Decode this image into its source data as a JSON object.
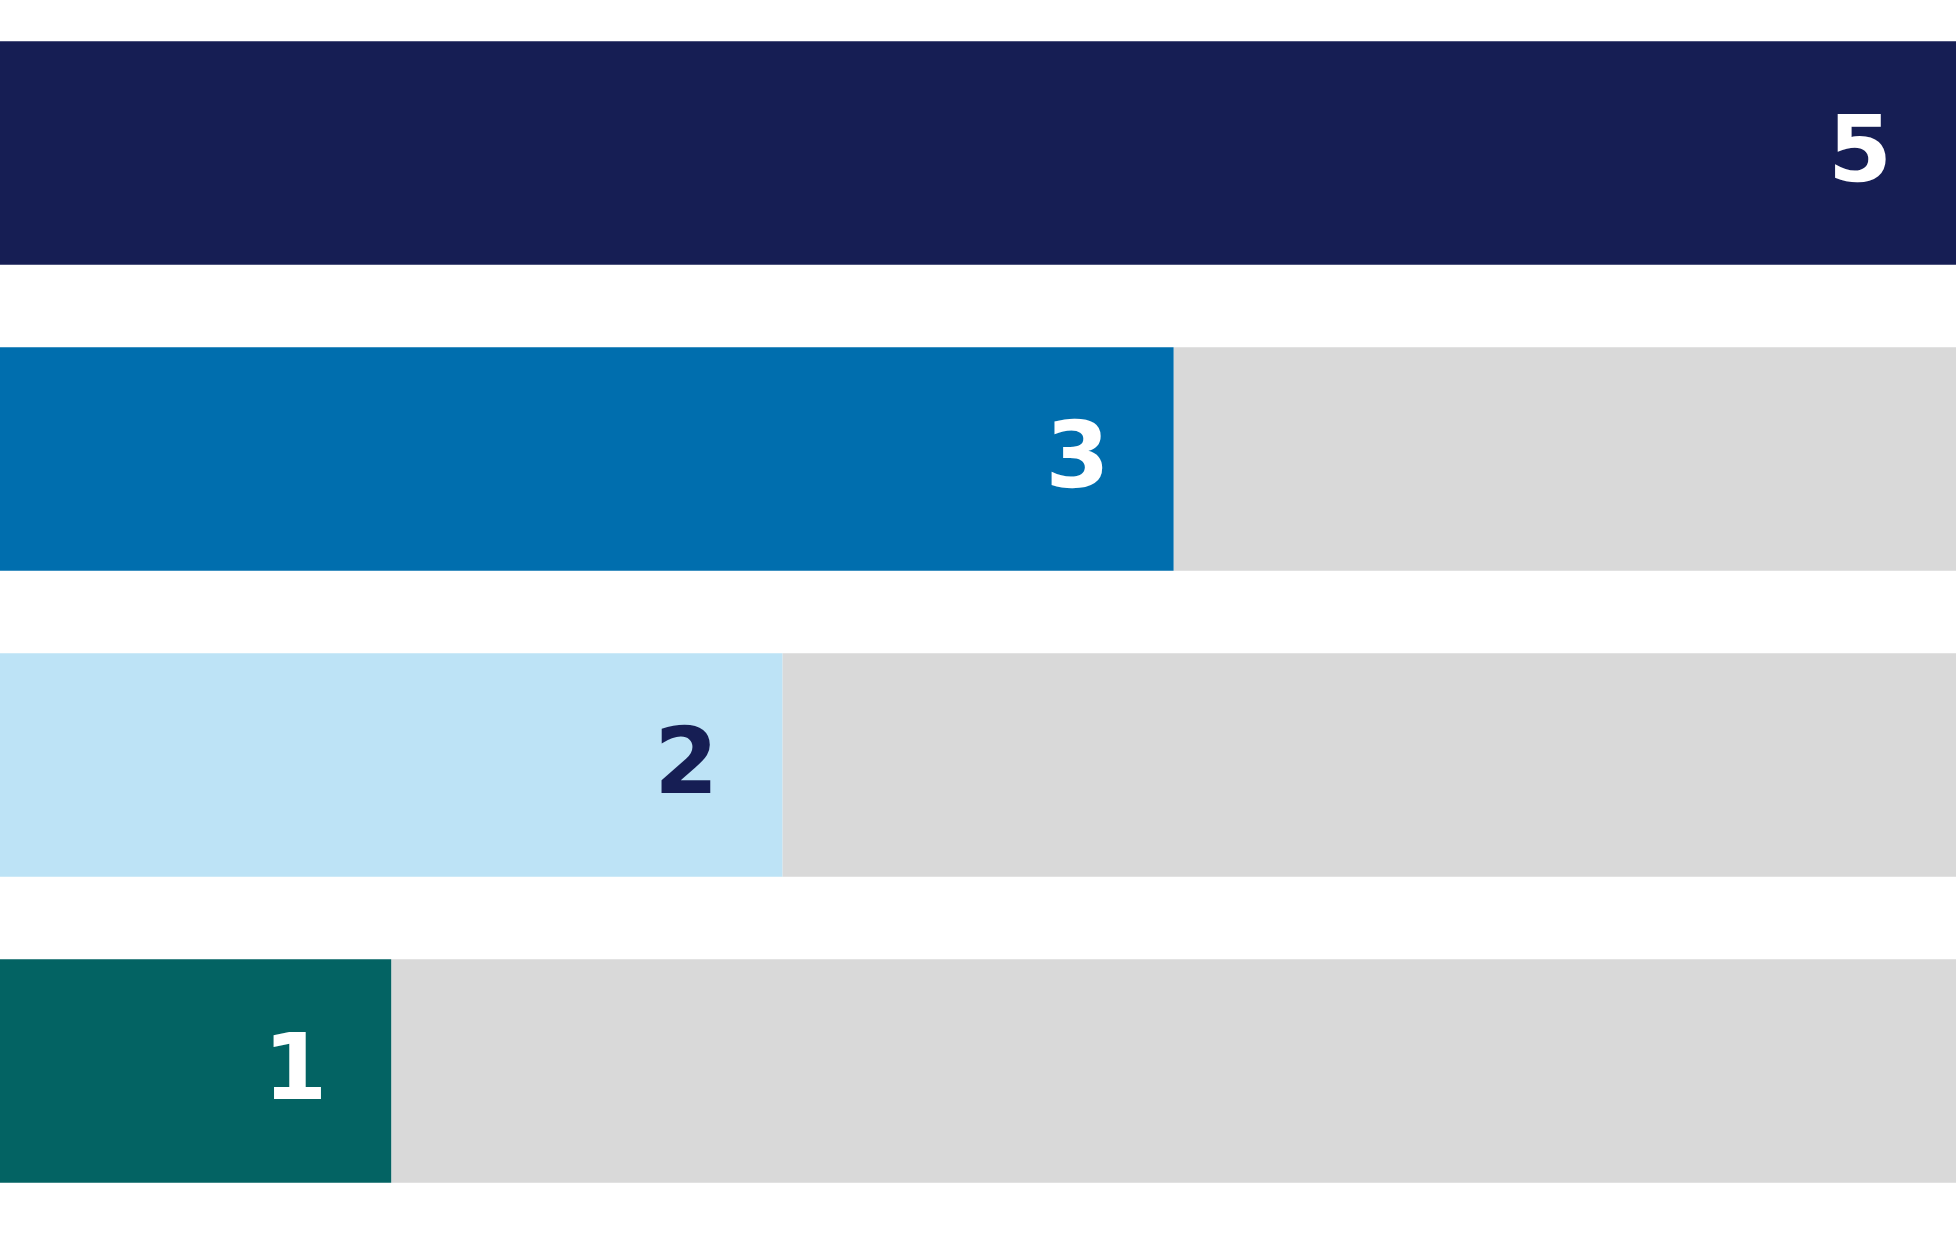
{
  "chart_data": {
    "type": "bar",
    "orientation": "horizontal",
    "stacked": true,
    "categories": [
      null,
      null,
      null,
      null
    ],
    "xlim": [
      0,
      5
    ],
    "series": [
      {
        "colors": [
          "#161e54",
          "#006eae",
          "#bde3f6",
          "#036363"
        ],
        "values": [
          5,
          3,
          2,
          1
        ],
        "value_labels": [
          "5",
          "3",
          "2",
          "1"
        ]
      },
      {
        "color": "#d9d9d9",
        "values": [
          0,
          2,
          3,
          4
        ]
      }
    ]
  }
}
